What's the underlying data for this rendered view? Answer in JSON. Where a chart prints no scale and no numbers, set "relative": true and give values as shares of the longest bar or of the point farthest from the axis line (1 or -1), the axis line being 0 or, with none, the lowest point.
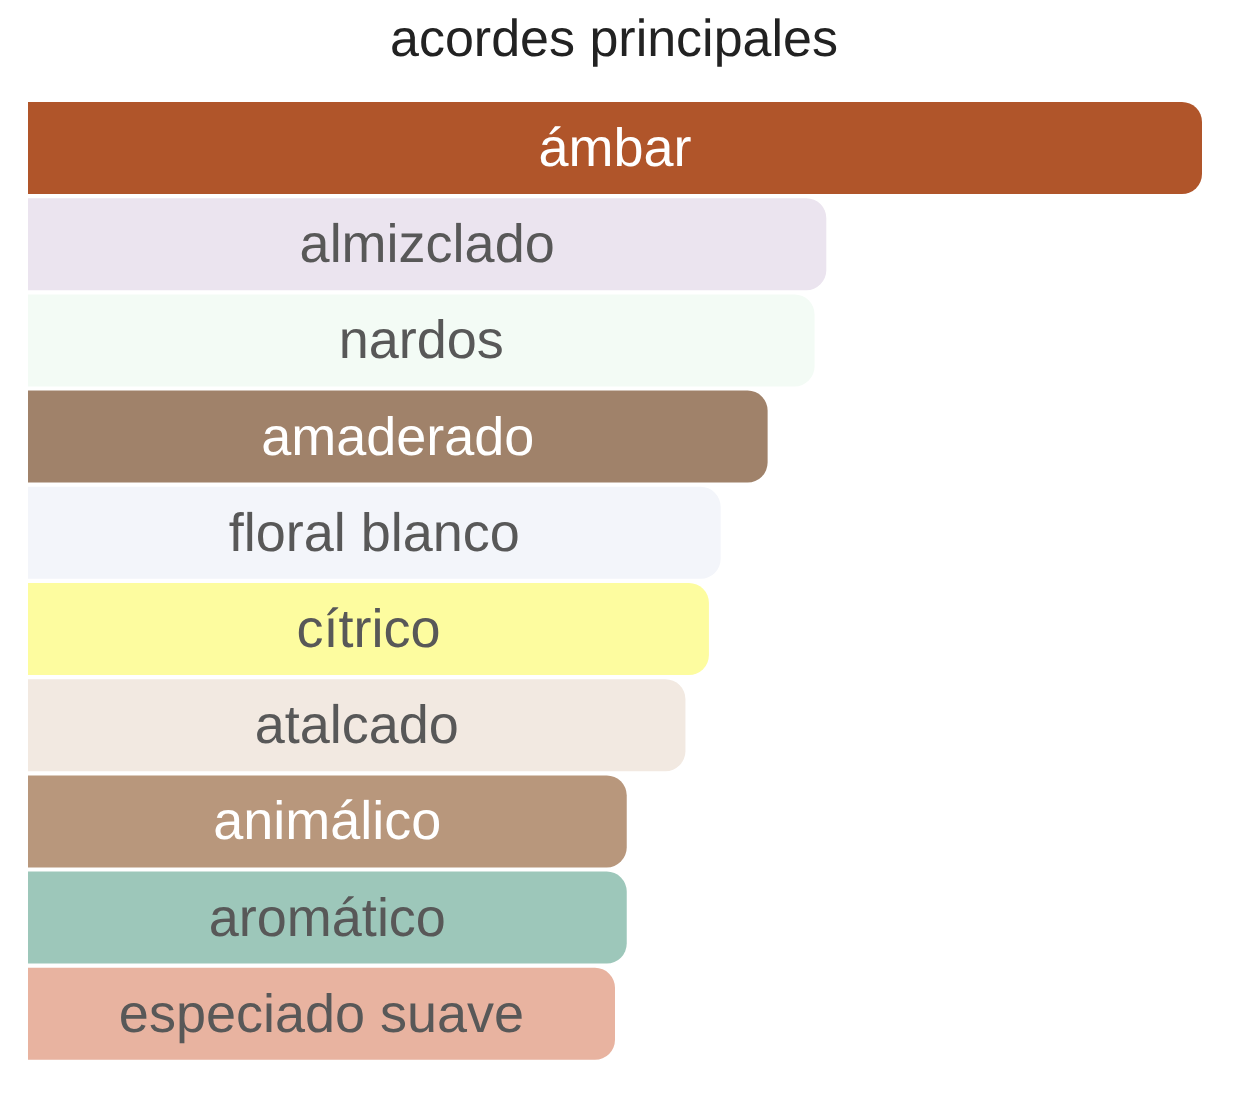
{
  "chart_data": {
    "type": "bar",
    "orientation": "horizontal",
    "relative": true,
    "title": "acordes principales",
    "categories": [
      "ámbar",
      "almizclado",
      "nardos",
      "amaderado",
      "floral blanco",
      "cítrico",
      "atalcado",
      "animálico",
      "aromático",
      "especiado suave"
    ],
    "values": [
      1,
      0.68,
      0.67,
      0.63,
      0.59,
      0.58,
      0.56,
      0.51,
      0.51,
      0.5
    ],
    "colors": [
      "#b0552a",
      "#ebe4ef",
      "#f3fbf5",
      "#a0826a",
      "#f3f5fa",
      "#fdfc9f",
      "#f2e9e1",
      "#b8977c",
      "#9dc7ba",
      "#e8b3a0"
    ]
  }
}
